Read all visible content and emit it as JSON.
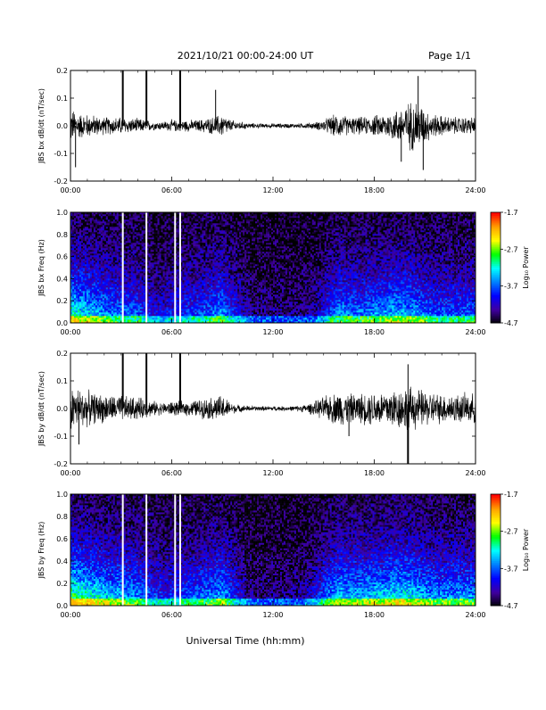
{
  "header": {
    "title": "2021/10/21  00:00-24:00 UT",
    "page": "Page 1/1"
  },
  "xaxis_label": "Universal Time (hh:mm)",
  "colorbar": {
    "label": "Log₁₀ Power",
    "ticks": [
      "-1.7",
      "-2.7",
      "-3.7",
      "-4.7"
    ],
    "colors": [
      "#ff0000",
      "#ffa000",
      "#ffff00",
      "#00ff00",
      "#00ffff",
      "#0080ff",
      "#0000ff",
      "#4000a0",
      "#000000"
    ]
  },
  "chart_data": [
    {
      "type": "line",
      "title": "",
      "xlabel": "",
      "ylabel": "JBS bx dB/dt (nT/sec)",
      "xticks": [
        "00:00",
        "06:00",
        "12:00",
        "18:00",
        "24:00"
      ],
      "yticks": [
        "0.2",
        "0.1",
        "0.0",
        "-0.1",
        "-0.2"
      ],
      "xlim": [
        0,
        24
      ],
      "ylim": [
        -0.2,
        0.2
      ],
      "series": [
        {
          "x": [
            0,
            0.5,
            1,
            1.5,
            2,
            2.5,
            3,
            3.5,
            4,
            4.5,
            5,
            5.5,
            6,
            6.5,
            7,
            7.5,
            8,
            8.5,
            9,
            9.5,
            10,
            10.5,
            11,
            11.5,
            12,
            12.5,
            13,
            13.5,
            14,
            14.5,
            15,
            15.5,
            16,
            16.5,
            17,
            17.5,
            18,
            18.5,
            19,
            19.5,
            20,
            20.5,
            21,
            21.5,
            22,
            22.5,
            23,
            23.5,
            24
          ],
          "amplitude": [
            0.06,
            0.045,
            0.04,
            0.035,
            0.03,
            0.03,
            0.03,
            0.025,
            0.025,
            0.02,
            0.015,
            0.015,
            0.02,
            0.02,
            0.02,
            0.02,
            0.025,
            0.03,
            0.04,
            0.02,
            0.015,
            0.01,
            0.008,
            0.008,
            0.008,
            0.008,
            0.008,
            0.008,
            0.01,
            0.012,
            0.02,
            0.035,
            0.04,
            0.03,
            0.03,
            0.03,
            0.035,
            0.04,
            0.05,
            0.06,
            0.08,
            0.09,
            0.06,
            0.04,
            0.035,
            0.03,
            0.03,
            0.03,
            0.03
          ]
        }
      ],
      "spikes": [
        {
          "x": 3.1,
          "y": 0.2
        },
        {
          "x": 4.5,
          "y": 0.2
        },
        {
          "x": 6.5,
          "y": 0.2
        },
        {
          "x": 8.6,
          "y": 0.13
        },
        {
          "x": 20.6,
          "y": 0.18
        },
        {
          "x": 20.9,
          "y": -0.16
        },
        {
          "x": 19.6,
          "y": -0.13
        },
        {
          "x": 0.3,
          "y": -0.15
        }
      ]
    },
    {
      "type": "heatmap",
      "title": "",
      "xlabel": "",
      "ylabel": "JBS bx Freq (Hz)",
      "colorbar_label": "Log₁₀ Power",
      "xticks": [
        "00:00",
        "06:00",
        "12:00",
        "18:00",
        "24:00"
      ],
      "yticks": [
        "1.0",
        "0.8",
        "0.6",
        "0.4",
        "0.2",
        "0.0"
      ],
      "xlim": [
        0,
        24
      ],
      "ylim": [
        0,
        1
      ],
      "zlim": [
        -4.7,
        -1.7
      ],
      "time_activity": [
        0.75,
        0.7,
        0.65,
        0.6,
        0.55,
        0.5,
        0.5,
        0.45,
        0.45,
        0.35,
        0.3,
        0.3,
        0.35,
        0.35,
        0.4,
        0.4,
        0.45,
        0.5,
        0.55,
        0.4,
        0.3,
        0.2,
        0.15,
        0.15,
        0.15,
        0.15,
        0.15,
        0.15,
        0.18,
        0.2,
        0.3,
        0.45,
        0.55,
        0.5,
        0.5,
        0.5,
        0.55,
        0.55,
        0.6,
        0.6,
        0.6,
        0.55,
        0.5,
        0.45,
        0.45,
        0.45,
        0.45,
        0.45,
        0.45
      ],
      "gaps": [
        3.1,
        4.5,
        6.2,
        6.5
      ]
    },
    {
      "type": "line",
      "title": "",
      "xlabel": "",
      "ylabel": "JBS by dB/dt (nT/sec)",
      "xticks": [
        "00:00",
        "06:00",
        "12:00",
        "18:00",
        "24:00"
      ],
      "yticks": [
        "0.2",
        "0.1",
        "0.0",
        "-0.1",
        "-0.2"
      ],
      "xlim": [
        0,
        24
      ],
      "ylim": [
        -0.2,
        0.2
      ],
      "series": [
        {
          "x": [
            0,
            0.5,
            1,
            1.5,
            2,
            2.5,
            3,
            3.5,
            4,
            4.5,
            5,
            5.5,
            6,
            6.5,
            7,
            7.5,
            8,
            8.5,
            9,
            9.5,
            10,
            10.5,
            11,
            11.5,
            12,
            12.5,
            13,
            13.5,
            14,
            14.5,
            15,
            15.5,
            16,
            16.5,
            17,
            17.5,
            18,
            18.5,
            19,
            19.5,
            20,
            20.5,
            21,
            21.5,
            22,
            22.5,
            23,
            23.5,
            24
          ],
          "amplitude": [
            0.08,
            0.07,
            0.06,
            0.05,
            0.05,
            0.045,
            0.045,
            0.04,
            0.04,
            0.03,
            0.025,
            0.02,
            0.025,
            0.025,
            0.025,
            0.03,
            0.035,
            0.04,
            0.045,
            0.02,
            0.012,
            0.01,
            0.008,
            0.008,
            0.008,
            0.008,
            0.008,
            0.01,
            0.015,
            0.025,
            0.04,
            0.05,
            0.06,
            0.05,
            0.05,
            0.055,
            0.06,
            0.06,
            0.07,
            0.07,
            0.075,
            0.07,
            0.06,
            0.055,
            0.05,
            0.05,
            0.05,
            0.05,
            0.05
          ]
        }
      ],
      "spikes": [
        {
          "x": 3.1,
          "y": 0.2
        },
        {
          "x": 4.5,
          "y": 0.2
        },
        {
          "x": 6.5,
          "y": 0.2
        },
        {
          "x": 20.0,
          "y": -0.2
        },
        {
          "x": 20.0,
          "y": 0.16
        },
        {
          "x": 0.5,
          "y": -0.13
        },
        {
          "x": 16.5,
          "y": -0.1
        }
      ]
    },
    {
      "type": "heatmap",
      "title": "",
      "xlabel": "",
      "ylabel": "JBS by Freq (Hz)",
      "colorbar_label": "Log₁₀ Power",
      "xticks": [
        "00:00",
        "06:00",
        "12:00",
        "18:00",
        "24:00"
      ],
      "yticks": [
        "1.0",
        "0.8",
        "0.6",
        "0.4",
        "0.2",
        "0.0"
      ],
      "xlim": [
        0,
        24
      ],
      "ylim": [
        0,
        1
      ],
      "zlim": [
        -4.7,
        -1.7
      ],
      "time_activity": [
        0.85,
        0.8,
        0.75,
        0.7,
        0.65,
        0.6,
        0.6,
        0.55,
        0.55,
        0.45,
        0.4,
        0.35,
        0.4,
        0.4,
        0.45,
        0.45,
        0.5,
        0.55,
        0.6,
        0.45,
        0.3,
        0.2,
        0.15,
        0.15,
        0.15,
        0.15,
        0.15,
        0.18,
        0.22,
        0.3,
        0.45,
        0.55,
        0.65,
        0.6,
        0.6,
        0.6,
        0.65,
        0.65,
        0.7,
        0.7,
        0.7,
        0.65,
        0.6,
        0.55,
        0.55,
        0.55,
        0.55,
        0.55,
        0.55
      ],
      "gaps": [
        3.1,
        4.5,
        6.2,
        6.5
      ]
    }
  ]
}
